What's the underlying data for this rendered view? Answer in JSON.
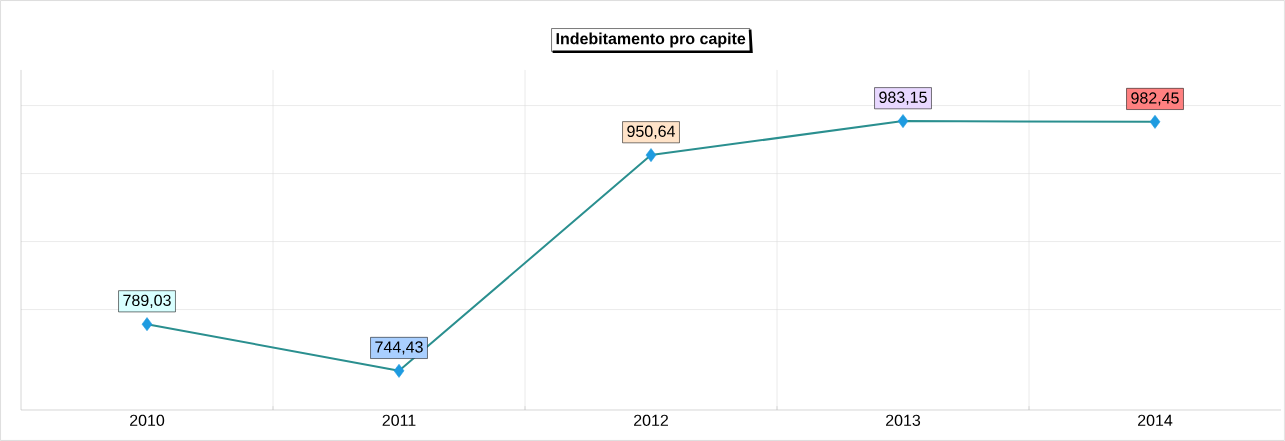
{
  "chart_data": {
    "type": "line",
    "title": "Indebitamento pro capite",
    "categories": [
      "2010",
      "2011",
      "2012",
      "2013",
      "2014"
    ],
    "values": [
      789.03,
      744.43,
      950.64,
      983.15,
      982.45
    ],
    "value_labels": [
      "789,03",
      "744,43",
      "950,64",
      "983,15",
      "982,45"
    ],
    "color": "#2a8f8f",
    "colors": [
      "#1e9be0",
      "#1e9be0",
      "#1e9be0",
      "#1e9be0",
      "#1e9be0"
    ],
    "marker": "diamond",
    "line_style": "solid",
    "ylim": [
      707,
      1032
    ],
    "yticks": [
      {
        "value": 803,
        "label": null
      },
      {
        "value": 868,
        "label": null
      },
      {
        "value": 933,
        "label": null
      },
      {
        "value": 998,
        "label": null
      }
    ],
    "tick_labels": "x",
    "grid": true
  }
}
